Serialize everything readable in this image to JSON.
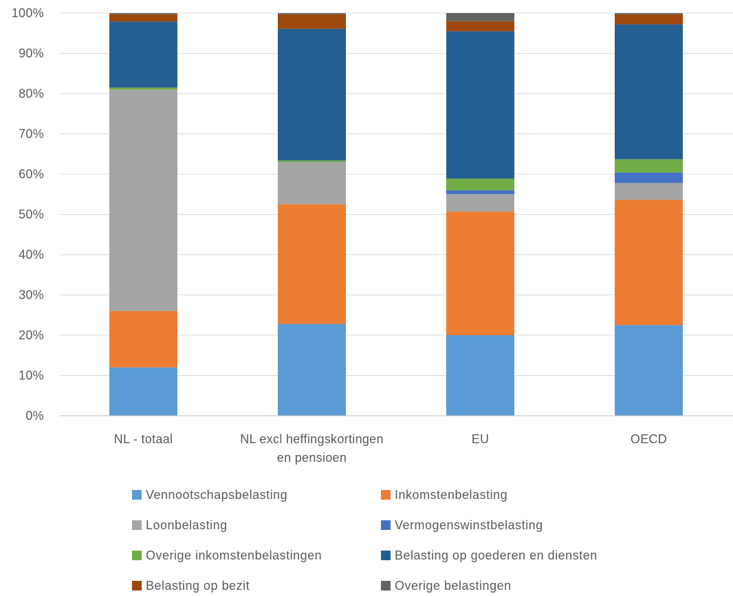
{
  "chart_data": {
    "type": "bar",
    "stacked": true,
    "normalized_percent": true,
    "categories": [
      "NL - totaal",
      "NL excl heffingskortingen en pensioen",
      "EU",
      "OECD"
    ],
    "category_lines": [
      [
        "NL - totaal"
      ],
      [
        "NL excl heffingskortingen",
        "en pensioen"
      ],
      [
        "EU"
      ],
      [
        "OECD"
      ]
    ],
    "series": [
      {
        "name": "Vennootschapsbelasting",
        "color": "#5B9BD5",
        "values": [
          12.0,
          22.8,
          20.0,
          22.5
        ]
      },
      {
        "name": "Inkomstenbelasting",
        "color": "#ED7D31",
        "values": [
          14.0,
          29.7,
          30.7,
          31.1
        ]
      },
      {
        "name": "Loonbelasting",
        "color": "#A5A5A5",
        "values": [
          55.0,
          10.5,
          4.3,
          4.2
        ]
      },
      {
        "name": "Vermogenswinstbelasting",
        "color": "#4472C4",
        "values": [
          0.0,
          0.0,
          1.0,
          2.6
        ]
      },
      {
        "name": "Overige inkomstenbelastingen",
        "color": "#70AD47",
        "values": [
          0.5,
          0.4,
          2.9,
          3.3
        ]
      },
      {
        "name": "Belasting op goederen en diensten",
        "color": "#255E91",
        "values": [
          16.4,
          32.7,
          36.6,
          33.5
        ]
      },
      {
        "name": "Belasting op bezit",
        "color": "#9E480E",
        "values": [
          1.8,
          3.6,
          2.5,
          2.5
        ]
      },
      {
        "name": "Overige belastingen",
        "color": "#636363",
        "values": [
          0.3,
          0.3,
          2.0,
          0.3
        ]
      }
    ],
    "y_ticks": [
      "0%",
      "10%",
      "20%",
      "30%",
      "40%",
      "50%",
      "60%",
      "70%",
      "80%",
      "90%",
      "100%"
    ],
    "ylim": [
      0,
      100
    ],
    "grid": true,
    "legend_position": "bottom",
    "gridline_color": "#D9D9D9",
    "axis_line_color": "#BFBFBF"
  }
}
